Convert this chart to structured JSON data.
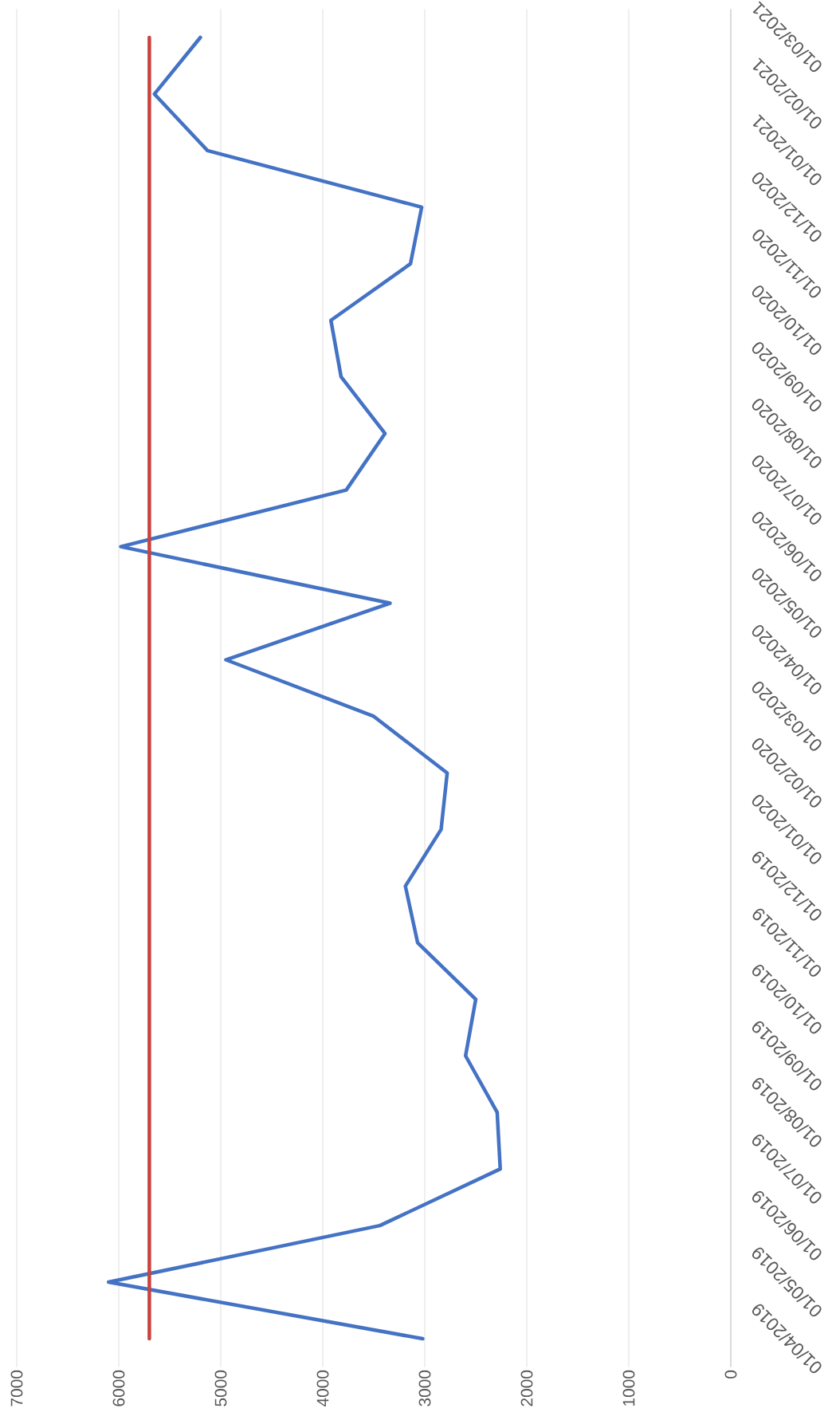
{
  "chart_data": {
    "type": "line",
    "orientation": "horizontal",
    "categories": [
      "01/03/2021",
      "01/02/2021",
      "01/01/2021",
      "01/12/2020",
      "01/11/2020",
      "01/10/2020",
      "01/09/2020",
      "01/08/2020",
      "01/07/2020",
      "01/06/2020",
      "01/05/2020",
      "01/04/2020",
      "01/03/2020",
      "01/02/2020",
      "01/01/2020",
      "01/12/2019",
      "01/11/2019",
      "01/10/2019",
      "01/09/2019",
      "01/08/2019",
      "01/07/2019",
      "01/06/2019",
      "01/05/2019",
      "01/04/2019"
    ],
    "values": [
      5200,
      5650,
      5130,
      3030,
      3140,
      3920,
      3820,
      3390,
      3770,
      5980,
      3340,
      4950,
      3500,
      2780,
      2840,
      3190,
      3070,
      2500,
      2600,
      2290,
      2260,
      3440,
      6100,
      3020
    ],
    "color": "#4472c4",
    "xlim": [
      7000,
      0
    ],
    "xticks": [
      7000,
      6000,
      5000,
      4000,
      3000,
      2000,
      1000,
      0
    ],
    "grid": "x",
    "ref_lines": [
      {
        "axis": "x",
        "value": 5700,
        "color": "#c9433f"
      }
    ]
  }
}
